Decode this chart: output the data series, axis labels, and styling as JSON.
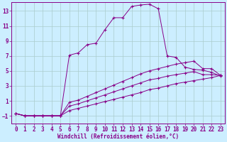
{
  "background_color": "#cceeff",
  "grid_color": "#aacccc",
  "line_color": "#880088",
  "marker": "+",
  "xlabel": "Windchill (Refroidissement éolien,°C)",
  "xlim": [
    -0.5,
    23.5
  ],
  "ylim": [
    -2.0,
    14.2
  ],
  "xticks": [
    0,
    1,
    2,
    3,
    4,
    5,
    6,
    7,
    8,
    9,
    10,
    11,
    12,
    13,
    14,
    15,
    16,
    17,
    18,
    19,
    20,
    21,
    22,
    23
  ],
  "yticks": [
    -1,
    1,
    3,
    5,
    7,
    9,
    11,
    13
  ],
  "line1_x": [
    0,
    1,
    2,
    3,
    4,
    5,
    6,
    7,
    8,
    9,
    10,
    11,
    12,
    13,
    14,
    15,
    16,
    17,
    18,
    19,
    20,
    21,
    22,
    23
  ],
  "line1_y": [
    -0.7,
    -1.0,
    -1.0,
    -1.0,
    -1.0,
    -1.0,
    7.1,
    7.4,
    8.5,
    8.7,
    10.5,
    12.1,
    12.1,
    13.6,
    13.8,
    13.9,
    13.3,
    7.0,
    6.8,
    5.5,
    5.2,
    5.1,
    4.8,
    4.3
  ],
  "line2_x": [
    0,
    1,
    2,
    3,
    4,
    5,
    6,
    7,
    8,
    9,
    10,
    11,
    12,
    13,
    14,
    15,
    16,
    17,
    18,
    19,
    20,
    21,
    22,
    23
  ],
  "line2_y": [
    -0.7,
    -1.0,
    -1.0,
    -1.0,
    -1.0,
    -1.0,
    0.8,
    1.1,
    1.6,
    2.1,
    2.6,
    3.1,
    3.6,
    4.1,
    4.6,
    5.0,
    5.3,
    5.6,
    5.9,
    6.1,
    6.3,
    5.3,
    5.3,
    4.4
  ],
  "line3_x": [
    0,
    1,
    2,
    3,
    4,
    5,
    6,
    7,
    8,
    9,
    10,
    11,
    12,
    13,
    14,
    15,
    16,
    17,
    18,
    19,
    20,
    21,
    22,
    23
  ],
  "line3_y": [
    -0.7,
    -1.0,
    -1.0,
    -1.0,
    -1.0,
    -1.0,
    0.3,
    0.6,
    1.0,
    1.4,
    1.8,
    2.2,
    2.6,
    3.0,
    3.4,
    3.8,
    4.0,
    4.3,
    4.5,
    4.7,
    4.9,
    4.5,
    4.5,
    4.4
  ],
  "line4_x": [
    0,
    1,
    2,
    3,
    4,
    5,
    6,
    7,
    8,
    9,
    10,
    11,
    12,
    13,
    14,
    15,
    16,
    17,
    18,
    19,
    20,
    21,
    22,
    23
  ],
  "line4_y": [
    -0.7,
    -1.0,
    -1.0,
    -1.0,
    -1.0,
    -1.0,
    -0.3,
    0.0,
    0.3,
    0.6,
    0.9,
    1.2,
    1.5,
    1.8,
    2.1,
    2.5,
    2.7,
    3.0,
    3.3,
    3.5,
    3.7,
    3.9,
    4.1,
    4.4
  ],
  "xlabel_fontsize": 5.5,
  "tick_fontsize": 5.5
}
